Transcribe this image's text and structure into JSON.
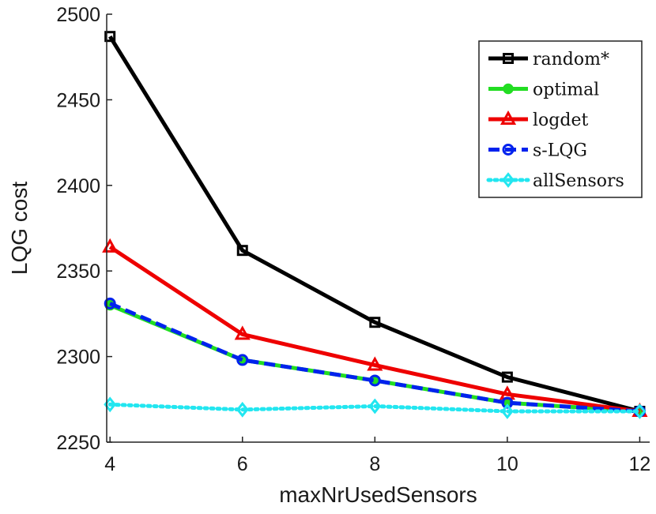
{
  "chart_data": {
    "type": "line",
    "title": "",
    "xlabel": "maxNrUsedSensors",
    "ylabel": "LQG cost",
    "x": [
      4,
      6,
      8,
      10,
      12
    ],
    "xlim": [
      3.95,
      12.15
    ],
    "ylim": [
      2250,
      2500
    ],
    "xticks": [
      4,
      6,
      8,
      10,
      12
    ],
    "yticks": [
      2250,
      2300,
      2350,
      2400,
      2450,
      2500
    ],
    "grid": false,
    "legend_position": "top-right",
    "series": [
      {
        "name": "random*",
        "color": "#000000",
        "dash": "solid",
        "marker": "square-open",
        "values": [
          2487,
          2362,
          2320,
          2288,
          2268
        ]
      },
      {
        "name": "optimal",
        "color": "#22dd22",
        "dash": "solid",
        "marker": "circle-filled",
        "values": [
          2330,
          2298,
          2286,
          2273,
          2268
        ]
      },
      {
        "name": "logdet",
        "color": "#ee0000",
        "dash": "solid",
        "marker": "triangle-open",
        "values": [
          2364,
          2313,
          2295,
          2278,
          2268
        ]
      },
      {
        "name": "s-LQG",
        "color": "#0022ee",
        "dash": "dashed",
        "marker": "circle-open",
        "values": [
          2331,
          2298,
          2286,
          2273,
          2268
        ]
      },
      {
        "name": "allSensors",
        "color": "#22e6f0",
        "dash": "dotted",
        "marker": "diamond-open",
        "values": [
          2272,
          2269,
          2271,
          2268,
          2268
        ]
      }
    ]
  }
}
